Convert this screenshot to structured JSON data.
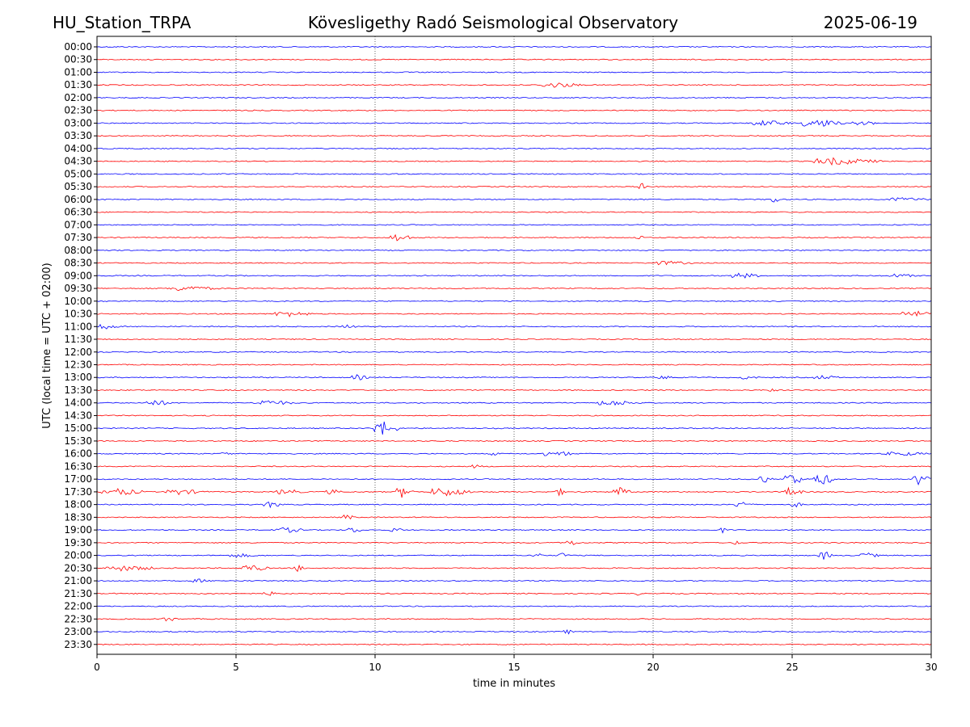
{
  "header": {
    "station": "HU_Station_TRPA",
    "observatory": "Kövesligethy Radó Seismological Observatory",
    "date": "2025-06-19"
  },
  "chart_data": {
    "type": "line",
    "title": "Kövesligethy Radó Seismological Observatory",
    "xlabel": "time in minutes",
    "ylabel": "UTC (local time = UTC + 02:00)",
    "xlim": [
      0,
      30
    ],
    "x_ticks": [
      "0",
      "5",
      "10",
      "15",
      "20",
      "25",
      "30"
    ],
    "vertical_grid": true,
    "colors": {
      "even_rows": "#0000ff",
      "odd_rows": "#ff0000"
    },
    "rows": [
      {
        "label": "00:00",
        "events": []
      },
      {
        "label": "00:30",
        "events": []
      },
      {
        "label": "01:00",
        "events": []
      },
      {
        "label": "01:30",
        "events": [
          {
            "t": 16.0,
            "dur": 1.5,
            "amp": 3
          }
        ]
      },
      {
        "label": "02:00",
        "events": []
      },
      {
        "label": "02:30",
        "events": []
      },
      {
        "label": "03:00",
        "events": [
          {
            "t": 23.6,
            "dur": 1.5,
            "amp": 3
          },
          {
            "t": 25.4,
            "dur": 1.5,
            "amp": 5
          },
          {
            "t": 27.2,
            "dur": 1.0,
            "amp": 2
          }
        ]
      },
      {
        "label": "03:30",
        "events": []
      },
      {
        "label": "04:00",
        "events": []
      },
      {
        "label": "04:30",
        "events": [
          {
            "t": 25.8,
            "dur": 2.5,
            "amp": 4
          }
        ]
      },
      {
        "label": "05:00",
        "events": []
      },
      {
        "label": "05:30",
        "events": [
          {
            "t": 19.5,
            "dur": 0.3,
            "amp": 4
          }
        ]
      },
      {
        "label": "06:00",
        "events": [
          {
            "t": 24.3,
            "dur": 0.3,
            "amp": 5
          },
          {
            "t": 28.5,
            "dur": 1.5,
            "amp": 2
          }
        ]
      },
      {
        "label": "06:30",
        "events": []
      },
      {
        "label": "07:00",
        "events": []
      },
      {
        "label": "07:30",
        "events": [
          {
            "t": 10.6,
            "dur": 0.8,
            "amp": 5
          },
          {
            "t": 19.4,
            "dur": 0.4,
            "amp": 2
          }
        ]
      },
      {
        "label": "08:00",
        "events": []
      },
      {
        "label": "08:30",
        "events": [
          {
            "t": 20.0,
            "dur": 1.5,
            "amp": 2
          }
        ]
      },
      {
        "label": "09:00",
        "events": [
          {
            "t": 22.8,
            "dur": 1.2,
            "amp": 3
          },
          {
            "t": 28.5,
            "dur": 1.0,
            "amp": 2
          }
        ]
      },
      {
        "label": "09:30",
        "events": [
          {
            "t": 2.6,
            "dur": 1.8,
            "amp": 3
          }
        ]
      },
      {
        "label": "10:00",
        "events": []
      },
      {
        "label": "10:30",
        "events": [
          {
            "t": 6.4,
            "dur": 1.5,
            "amp": 3
          },
          {
            "t": 29.0,
            "dur": 1.0,
            "amp": 4
          }
        ]
      },
      {
        "label": "11:00",
        "events": [
          {
            "t": 0.0,
            "dur": 0.8,
            "amp": 3
          },
          {
            "t": 8.8,
            "dur": 0.6,
            "amp": 2
          }
        ]
      },
      {
        "label": "11:30",
        "events": []
      },
      {
        "label": "12:00",
        "events": []
      },
      {
        "label": "12:30",
        "events": []
      },
      {
        "label": "13:00",
        "events": [
          {
            "t": 9.2,
            "dur": 0.6,
            "amp": 3
          },
          {
            "t": 20.2,
            "dur": 0.5,
            "amp": 2
          },
          {
            "t": 23.2,
            "dur": 0.6,
            "amp": 2
          },
          {
            "t": 25.8,
            "dur": 1.0,
            "amp": 2
          }
        ]
      },
      {
        "label": "13:30",
        "events": [
          {
            "t": 24.0,
            "dur": 0.5,
            "amp": 2
          }
        ]
      },
      {
        "label": "14:00",
        "events": [
          {
            "t": 1.8,
            "dur": 1.0,
            "amp": 3
          },
          {
            "t": 5.6,
            "dur": 1.6,
            "amp": 3
          },
          {
            "t": 18.0,
            "dur": 1.6,
            "amp": 3
          }
        ]
      },
      {
        "label": "14:30",
        "events": []
      },
      {
        "label": "15:00",
        "events": [
          {
            "t": 10.0,
            "dur": 0.9,
            "amp": 9
          }
        ]
      },
      {
        "label": "15:30",
        "events": []
      },
      {
        "label": "16:00",
        "events": [
          {
            "t": 4.5,
            "dur": 0.4,
            "amp": 2
          },
          {
            "t": 14.2,
            "dur": 0.3,
            "amp": 2
          },
          {
            "t": 16.0,
            "dur": 0.4,
            "amp": 2
          },
          {
            "t": 16.6,
            "dur": 0.5,
            "amp": 3
          },
          {
            "t": 28.4,
            "dur": 1.6,
            "amp": 2
          }
        ]
      },
      {
        "label": "16:30",
        "events": [
          {
            "t": 13.5,
            "dur": 0.4,
            "amp": 2
          }
        ]
      },
      {
        "label": "17:00",
        "events": [
          {
            "t": 23.8,
            "dur": 0.5,
            "amp": 5
          },
          {
            "t": 24.8,
            "dur": 0.6,
            "amp": 9
          },
          {
            "t": 25.8,
            "dur": 0.8,
            "amp": 7
          },
          {
            "t": 29.4,
            "dur": 0.6,
            "amp": 8
          }
        ]
      },
      {
        "label": "17:30",
        "events": [
          {
            "t": 0.2,
            "dur": 1.6,
            "amp": 4
          },
          {
            "t": 2.5,
            "dur": 1.5,
            "amp": 3
          },
          {
            "t": 6.5,
            "dur": 1.0,
            "amp": 3
          },
          {
            "t": 8.3,
            "dur": 0.5,
            "amp": 3
          },
          {
            "t": 10.8,
            "dur": 0.6,
            "amp": 7
          },
          {
            "t": 12.0,
            "dur": 1.6,
            "amp": 5
          },
          {
            "t": 16.5,
            "dur": 0.4,
            "amp": 4
          },
          {
            "t": 18.6,
            "dur": 0.6,
            "amp": 6
          },
          {
            "t": 24.8,
            "dur": 0.6,
            "amp": 6
          }
        ]
      },
      {
        "label": "18:00",
        "events": [
          {
            "t": 6.0,
            "dur": 0.8,
            "amp": 3
          },
          {
            "t": 23.0,
            "dur": 0.6,
            "amp": 4
          },
          {
            "t": 25.0,
            "dur": 0.4,
            "amp": 3
          }
        ]
      },
      {
        "label": "18:30",
        "events": [
          {
            "t": 8.8,
            "dur": 0.5,
            "amp": 3
          }
        ]
      },
      {
        "label": "19:00",
        "events": [
          {
            "t": 6.5,
            "dur": 1.0,
            "amp": 3
          },
          {
            "t": 9.0,
            "dur": 0.6,
            "amp": 3
          },
          {
            "t": 10.6,
            "dur": 0.4,
            "amp": 3
          },
          {
            "t": 22.4,
            "dur": 0.3,
            "amp": 3
          }
        ]
      },
      {
        "label": "19:30",
        "events": [
          {
            "t": 16.9,
            "dur": 0.5,
            "amp": 3
          },
          {
            "t": 22.9,
            "dur": 0.3,
            "amp": 2
          }
        ]
      },
      {
        "label": "20:00",
        "events": [
          {
            "t": 4.8,
            "dur": 1.0,
            "amp": 2
          },
          {
            "t": 15.6,
            "dur": 0.5,
            "amp": 3
          },
          {
            "t": 16.6,
            "dur": 0.4,
            "amp": 3
          },
          {
            "t": 26.0,
            "dur": 0.5,
            "amp": 5
          },
          {
            "t": 27.4,
            "dur": 0.8,
            "amp": 3
          }
        ]
      },
      {
        "label": "20:30",
        "events": [
          {
            "t": 0.3,
            "dur": 2.0,
            "amp": 3
          },
          {
            "t": 5.2,
            "dur": 1.0,
            "amp": 4
          },
          {
            "t": 7.1,
            "dur": 0.4,
            "amp": 4
          }
        ]
      },
      {
        "label": "21:00",
        "events": [
          {
            "t": 3.5,
            "dur": 0.6,
            "amp": 2
          }
        ]
      },
      {
        "label": "21:30",
        "events": [
          {
            "t": 6.0,
            "dur": 0.6,
            "amp": 2
          },
          {
            "t": 19.3,
            "dur": 0.3,
            "amp": 2
          }
        ]
      },
      {
        "label": "22:00",
        "events": []
      },
      {
        "label": "22:30",
        "events": [
          {
            "t": 2.4,
            "dur": 0.5,
            "amp": 3
          }
        ]
      },
      {
        "label": "23:00",
        "events": [
          {
            "t": 16.8,
            "dur": 0.5,
            "amp": 2
          }
        ]
      },
      {
        "label": "23:30",
        "events": []
      }
    ]
  }
}
